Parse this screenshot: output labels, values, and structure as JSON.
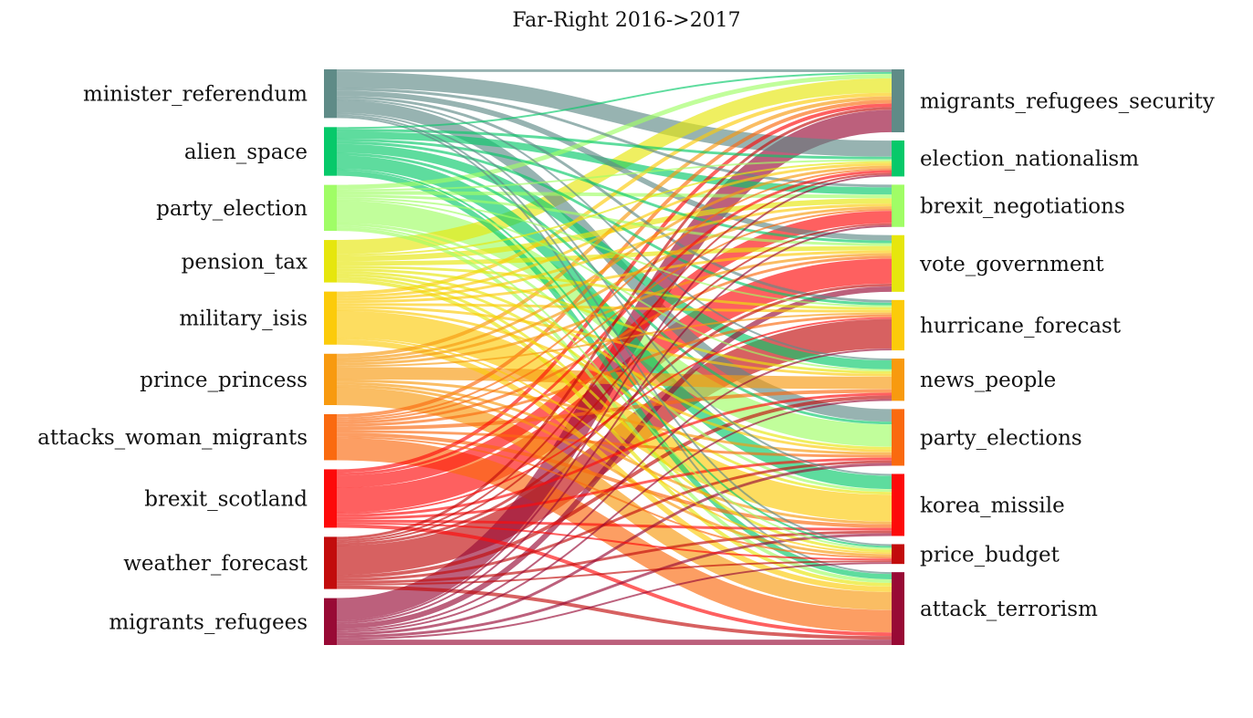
{
  "title": "Far-Right 2016->2017",
  "left_nodes": [
    {
      "label": "minister_referendum",
      "color": "#5f8b87"
    },
    {
      "label": "alien_space",
      "color": "#07c96a"
    },
    {
      "label": "party_election",
      "color": "#a0fd66"
    },
    {
      "label": "pension_tax",
      "color": "#e6e60d"
    },
    {
      "label": "military_isis",
      "color": "#fccb0a"
    },
    {
      "label": "prince_princess",
      "color": "#f89a0f"
    },
    {
      "label": "attacks_woman_migrants",
      "color": "#fa6a0f"
    },
    {
      "label": "brexit_scotland",
      "color": "#fd0a0a"
    },
    {
      "label": "weather_forecast",
      "color": "#c20c0c"
    },
    {
      "label": "migrants_refugees",
      "color": "#980a35"
    }
  ],
  "right_nodes": [
    {
      "label": "migrants_refugees_security",
      "color": "#5f8b87"
    },
    {
      "label": "election_nationalism",
      "color": "#07c96a"
    },
    {
      "label": "brexit_negotiations",
      "color": "#a0fd66"
    },
    {
      "label": "vote_government",
      "color": "#e6e60d"
    },
    {
      "label": "hurricane_forecast",
      "color": "#fccb0a"
    },
    {
      "label": "news_people",
      "color": "#f89a0f"
    },
    {
      "label": "party_elections",
      "color": "#fa6a0f"
    },
    {
      "label": "korea_missile",
      "color": "#fd0a0a"
    },
    {
      "label": "price_budget",
      "color": "#c20c0c"
    },
    {
      "label": "attack_terrorism",
      "color": "#980a35"
    }
  ],
  "flows": [
    {
      "source": "minister_referendum",
      "target": "migrants_refugees_security",
      "value": 3
    },
    {
      "source": "minister_referendum",
      "target": "election_nationalism",
      "value": 18
    },
    {
      "source": "minister_referendum",
      "target": "brexit_negotiations",
      "value": 3
    },
    {
      "source": "minister_referendum",
      "target": "vote_government",
      "value": 6
    },
    {
      "source": "minister_referendum",
      "target": "hurricane_forecast",
      "value": 3
    },
    {
      "source": "minister_referendum",
      "target": "news_people",
      "value": 2
    },
    {
      "source": "minister_referendum",
      "target": "party_elections",
      "value": 14
    },
    {
      "source": "minister_referendum",
      "target": "korea_missile",
      "value": 2
    },
    {
      "source": "minister_referendum",
      "target": "price_budget",
      "value": 2
    },
    {
      "source": "minister_referendum",
      "target": "attack_terrorism",
      "value": 2
    },
    {
      "source": "alien_space",
      "target": "migrants_refugees_security",
      "value": 2
    },
    {
      "source": "alien_space",
      "target": "election_nationalism",
      "value": 3
    },
    {
      "source": "alien_space",
      "target": "brexit_negotiations",
      "value": 8
    },
    {
      "source": "alien_space",
      "target": "vote_government",
      "value": 3
    },
    {
      "source": "alien_space",
      "target": "hurricane_forecast",
      "value": 3
    },
    {
      "source": "alien_space",
      "target": "news_people",
      "value": 10
    },
    {
      "source": "alien_space",
      "target": "party_elections",
      "value": 3
    },
    {
      "source": "alien_space",
      "target": "korea_missile",
      "value": 15
    },
    {
      "source": "alien_space",
      "target": "price_budget",
      "value": 2
    },
    {
      "source": "alien_space",
      "target": "attack_terrorism",
      "value": 6
    },
    {
      "source": "party_election",
      "target": "migrants_refugees_security",
      "value": 5
    },
    {
      "source": "party_election",
      "target": "election_nationalism",
      "value": 2
    },
    {
      "source": "party_election",
      "target": "brexit_negotiations",
      "value": 4
    },
    {
      "source": "party_election",
      "target": "vote_government",
      "value": 3
    },
    {
      "source": "party_election",
      "target": "hurricane_forecast",
      "value": 2
    },
    {
      "source": "party_election",
      "target": "news_people",
      "value": 2
    },
    {
      "source": "party_election",
      "target": "party_elections",
      "value": 25
    },
    {
      "source": "party_election",
      "target": "korea_missile",
      "value": 3
    },
    {
      "source": "party_election",
      "target": "price_budget",
      "value": 2
    },
    {
      "source": "party_election",
      "target": "attack_terrorism",
      "value": 4
    },
    {
      "source": "pension_tax",
      "target": "migrants_refugees_security",
      "value": 16
    },
    {
      "source": "pension_tax",
      "target": "election_nationalism",
      "value": 2
    },
    {
      "source": "pension_tax",
      "target": "brexit_negotiations",
      "value": 6
    },
    {
      "source": "pension_tax",
      "target": "vote_government",
      "value": 5
    },
    {
      "source": "pension_tax",
      "target": "hurricane_forecast",
      "value": 3
    },
    {
      "source": "pension_tax",
      "target": "news_people",
      "value": 3
    },
    {
      "source": "pension_tax",
      "target": "party_elections",
      "value": 3
    },
    {
      "source": "pension_tax",
      "target": "korea_missile",
      "value": 3
    },
    {
      "source": "pension_tax",
      "target": "price_budget",
      "value": 3
    },
    {
      "source": "pension_tax",
      "target": "attack_terrorism",
      "value": 4
    },
    {
      "source": "military_isis",
      "target": "migrants_refugees_security",
      "value": 4
    },
    {
      "source": "military_isis",
      "target": "election_nationalism",
      "value": 3
    },
    {
      "source": "military_isis",
      "target": "brexit_negotiations",
      "value": 3
    },
    {
      "source": "military_isis",
      "target": "vote_government",
      "value": 3
    },
    {
      "source": "military_isis",
      "target": "hurricane_forecast",
      "value": 3
    },
    {
      "source": "military_isis",
      "target": "news_people",
      "value": 3
    },
    {
      "source": "military_isis",
      "target": "party_elections",
      "value": 3
    },
    {
      "source": "military_isis",
      "target": "korea_missile",
      "value": 30
    },
    {
      "source": "military_isis",
      "target": "price_budget",
      "value": 2
    },
    {
      "source": "military_isis",
      "target": "attack_terrorism",
      "value": 6
    },
    {
      "source": "prince_princess",
      "target": "migrants_refugees_security",
      "value": 4
    },
    {
      "source": "prince_princess",
      "target": "election_nationalism",
      "value": 3
    },
    {
      "source": "prince_princess",
      "target": "brexit_negotiations",
      "value": 3
    },
    {
      "source": "prince_princess",
      "target": "vote_government",
      "value": 3
    },
    {
      "source": "prince_princess",
      "target": "hurricane_forecast",
      "value": 2
    },
    {
      "source": "prince_princess",
      "target": "news_people",
      "value": 14
    },
    {
      "source": "prince_princess",
      "target": "party_elections",
      "value": 3
    },
    {
      "source": "prince_princess",
      "target": "korea_missile",
      "value": 3
    },
    {
      "source": "prince_princess",
      "target": "price_budget",
      "value": 3
    },
    {
      "source": "prince_princess",
      "target": "attack_terrorism",
      "value": 20
    },
    {
      "source": "attacks_woman_migrants",
      "target": "migrants_refugees_security",
      "value": 4
    },
    {
      "source": "attacks_woman_migrants",
      "target": "election_nationalism",
      "value": 2
    },
    {
      "source": "attacks_woman_migrants",
      "target": "brexit_negotiations",
      "value": 2
    },
    {
      "source": "attacks_woman_migrants",
      "target": "vote_government",
      "value": 3
    },
    {
      "source": "attacks_woman_migrants",
      "target": "hurricane_forecast",
      "value": 3
    },
    {
      "source": "attacks_woman_migrants",
      "target": "news_people",
      "value": 4
    },
    {
      "source": "attacks_woman_migrants",
      "target": "party_elections",
      "value": 3
    },
    {
      "source": "attacks_woman_migrants",
      "target": "korea_missile",
      "value": 4
    },
    {
      "source": "attacks_woman_migrants",
      "target": "price_budget",
      "value": 2
    },
    {
      "source": "attacks_woman_migrants",
      "target": "attack_terrorism",
      "value": 25
    },
    {
      "source": "brexit_scotland",
      "target": "migrants_refugees_security",
      "value": 4
    },
    {
      "source": "brexit_scotland",
      "target": "election_nationalism",
      "value": 3
    },
    {
      "source": "brexit_scotland",
      "target": "brexit_negotiations",
      "value": 14
    },
    {
      "source": "brexit_scotland",
      "target": "vote_government",
      "value": 28
    },
    {
      "source": "brexit_scotland",
      "target": "hurricane_forecast",
      "value": 2
    },
    {
      "source": "brexit_scotland",
      "target": "news_people",
      "value": 3
    },
    {
      "source": "brexit_scotland",
      "target": "party_elections",
      "value": 3
    },
    {
      "source": "brexit_scotland",
      "target": "korea_missile",
      "value": 3
    },
    {
      "source": "brexit_scotland",
      "target": "price_budget",
      "value": 2
    },
    {
      "source": "brexit_scotland",
      "target": "attack_terrorism",
      "value": 4
    },
    {
      "source": "weather_forecast",
      "target": "migrants_refugees_security",
      "value": 3
    },
    {
      "source": "weather_forecast",
      "target": "election_nationalism",
      "value": 2
    },
    {
      "source": "weather_forecast",
      "target": "brexit_negotiations",
      "value": 2
    },
    {
      "source": "weather_forecast",
      "target": "vote_government",
      "value": 3
    },
    {
      "source": "weather_forecast",
      "target": "hurricane_forecast",
      "value": 33
    },
    {
      "source": "weather_forecast",
      "target": "news_people",
      "value": 4
    },
    {
      "source": "weather_forecast",
      "target": "party_elections",
      "value": 3
    },
    {
      "source": "weather_forecast",
      "target": "korea_missile",
      "value": 3
    },
    {
      "source": "weather_forecast",
      "target": "price_budget",
      "value": 2
    },
    {
      "source": "weather_forecast",
      "target": "attack_terrorism",
      "value": 4
    },
    {
      "source": "migrants_refugees",
      "target": "migrants_refugees_security",
      "value": 25
    },
    {
      "source": "migrants_refugees",
      "target": "election_nationalism",
      "value": 2
    },
    {
      "source": "migrants_refugees",
      "target": "brexit_negotiations",
      "value": 2
    },
    {
      "source": "migrants_refugees",
      "target": "vote_government",
      "value": 6
    },
    {
      "source": "migrants_refugees",
      "target": "hurricane_forecast",
      "value": 2
    },
    {
      "source": "migrants_refugees",
      "target": "news_people",
      "value": 2
    },
    {
      "source": "migrants_refugees",
      "target": "party_elections",
      "value": 3
    },
    {
      "source": "migrants_refugees",
      "target": "korea_missile",
      "value": 3
    },
    {
      "source": "migrants_refugees",
      "target": "price_budget",
      "value": 2
    },
    {
      "source": "migrants_refugees",
      "target": "attack_terrorism",
      "value": 6
    }
  ]
}
